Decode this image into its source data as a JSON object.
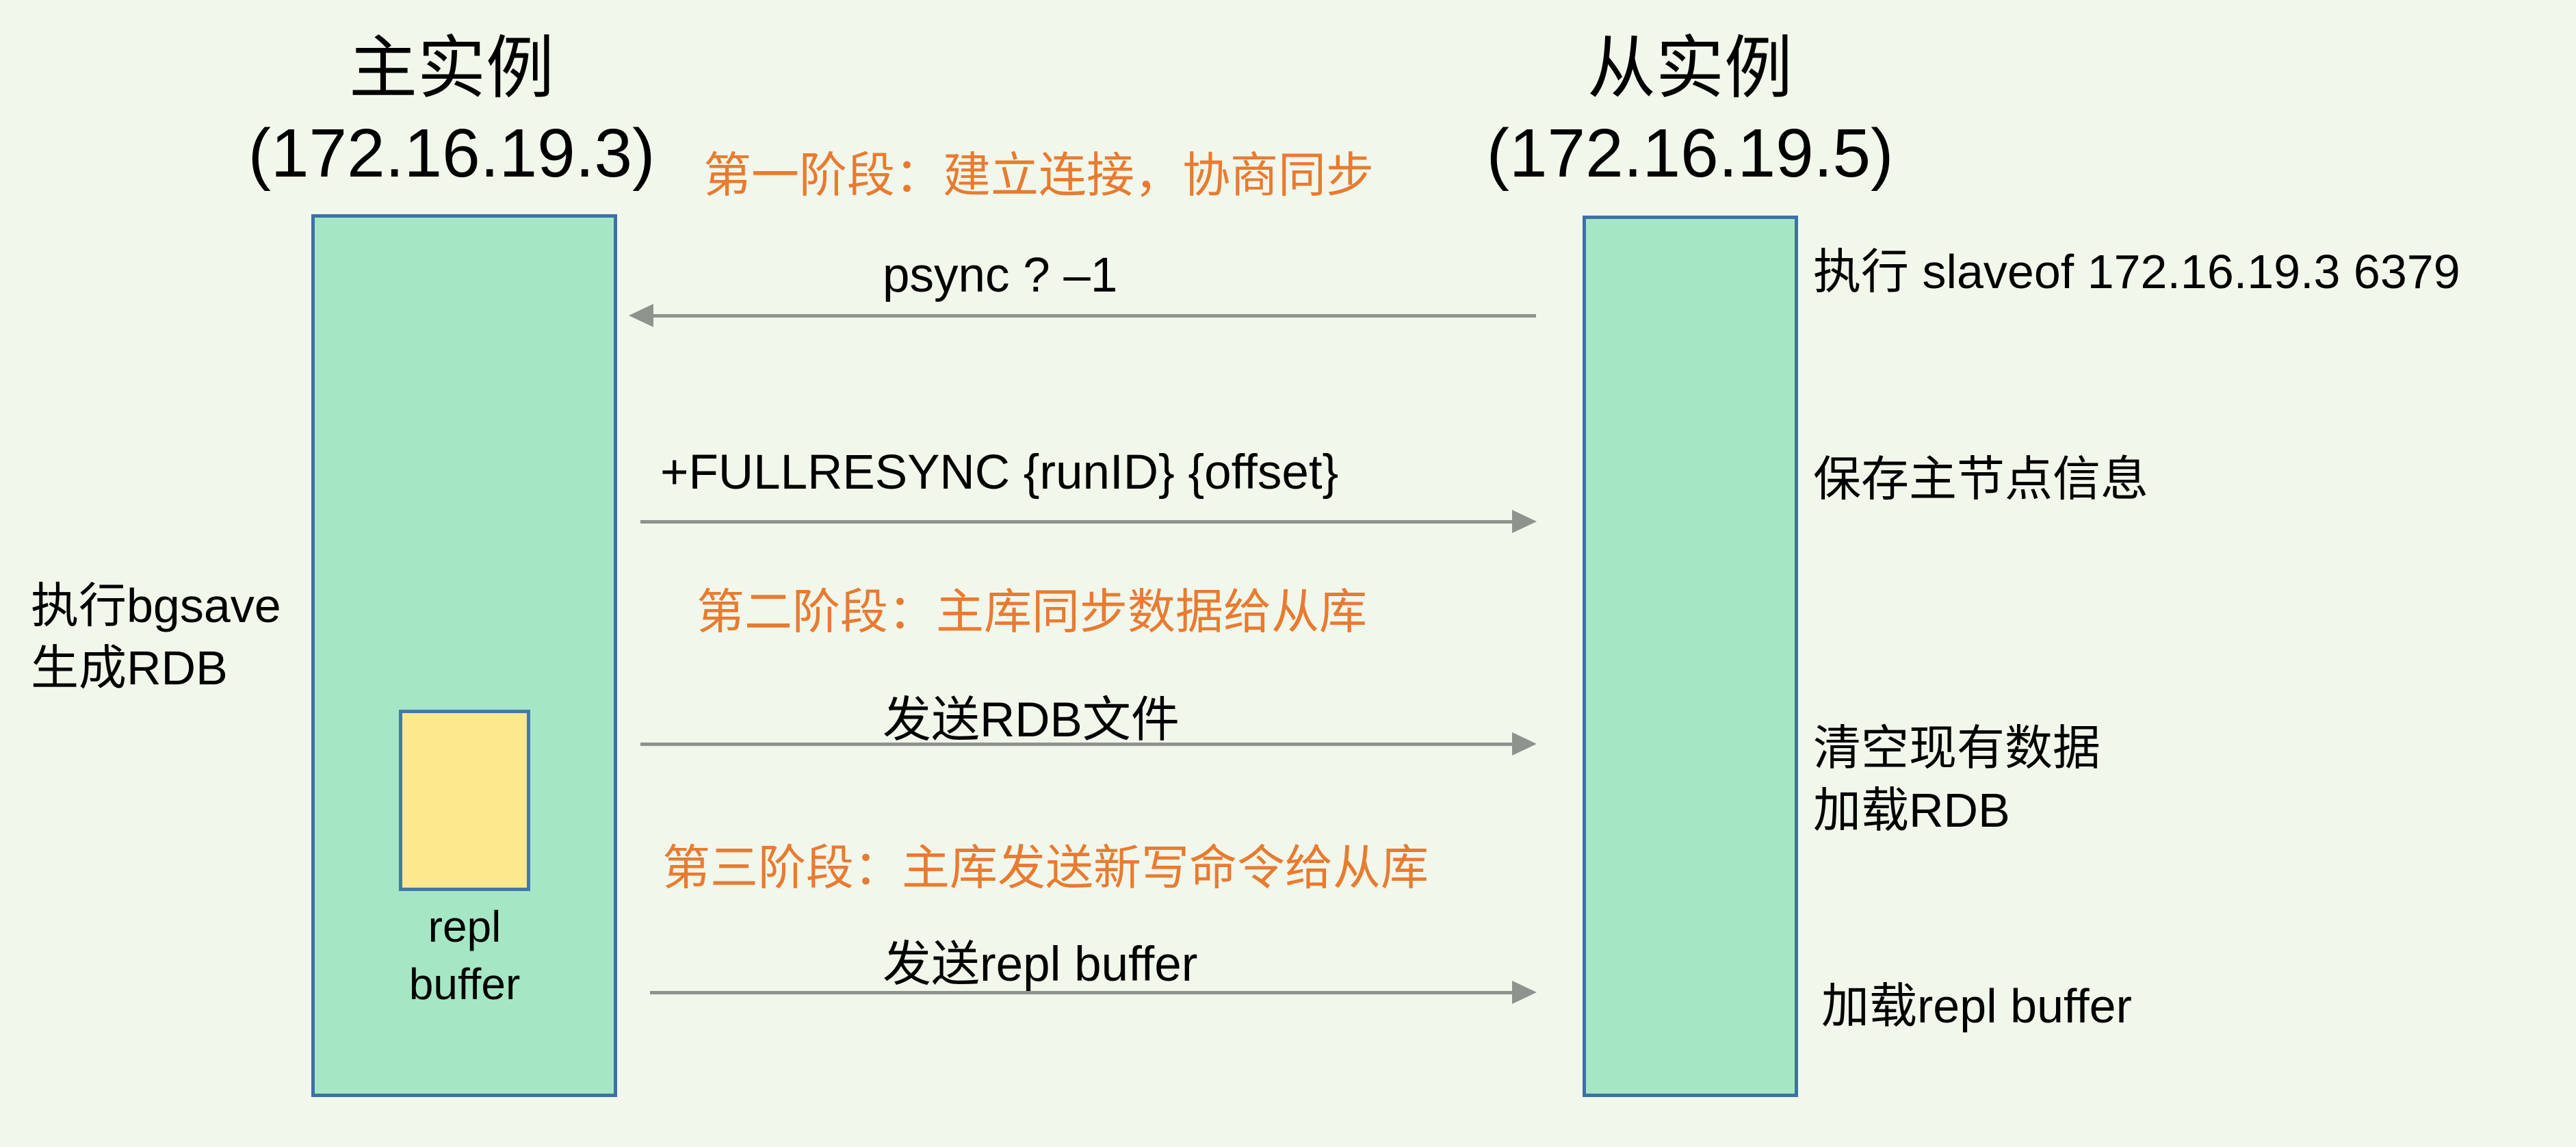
{
  "colors": {
    "background": "#f1f7eb",
    "node_fill": "#a5e7c5",
    "node_border": "#3e70a8",
    "buffer_fill": "#fce98e",
    "buffer_border": "#4577ad",
    "phase_text": "#e87b30",
    "arrow": "#8e938e",
    "text": "#141414"
  },
  "master": {
    "title": "主实例",
    "ip": "(172.16.19.3)",
    "annotation_lines": [
      "执行bgsave",
      "生成RDB"
    ],
    "buffer_label_lines": [
      "repl",
      "buffer"
    ]
  },
  "slave": {
    "title": "从实例",
    "ip": "(172.16.19.5)",
    "annotations": {
      "exec_slaveof": "执行 slaveof  172.16.19.3  6379",
      "save_master_info": "保存主节点信息",
      "clear_data_lines": [
        "清空现有数据",
        "加载RDB"
      ],
      "load_repl_buffer": "加载repl buffer"
    }
  },
  "phases": [
    {
      "label": "第一阶段：建立连接，协商同步"
    },
    {
      "label": "第二阶段：主库同步数据给从库"
    },
    {
      "label": "第三阶段：主库发送新写命令给从库"
    }
  ],
  "messages": [
    {
      "label": "psync ? –1",
      "direction": "left"
    },
    {
      "label": "+FULLRESYNC {runID} {offset}",
      "direction": "right"
    },
    {
      "label": "发送RDB文件",
      "direction": "right"
    },
    {
      "label": "发送repl buffer",
      "direction": "right"
    }
  ]
}
